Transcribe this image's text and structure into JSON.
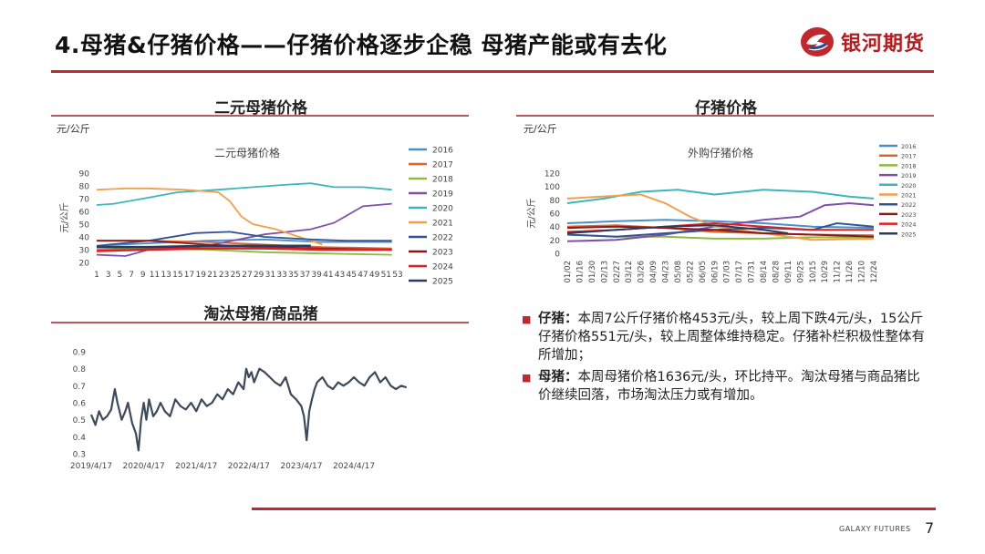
{
  "header": {
    "title": "4.母猪&仔猪价格——仔猪价格逐步企稳 母猪产能或有去化",
    "logo_text": "银河期货"
  },
  "colors": {
    "accent": "#c0282d",
    "s2016": "#4a90c8",
    "s2017": "#e0662a",
    "s2018": "#8dbb3f",
    "s2019": "#8050a8",
    "s2020": "#3eb5b8",
    "s2021": "#f0a050",
    "s2022": "#2f5597",
    "s2023": "#8a1a1a",
    "s2024": "#e02020",
    "s2025": "#2d3a5e"
  },
  "left_top": {
    "section_title": "二元母猪价格",
    "unit": "元/公斤",
    "chart_data": {
      "type": "line",
      "title": "二元母猪价格",
      "ylabel": "元/公斤",
      "ylim": [
        20,
        90
      ],
      "yticks": [
        "90",
        "80",
        "70",
        "60",
        "50",
        "40",
        "30",
        "20"
      ],
      "xticks": [
        "1",
        "3",
        "5",
        "7",
        "9",
        "11",
        "13",
        "15",
        "17",
        "19",
        "21",
        "23",
        "25",
        "27",
        "29",
        "31",
        "33",
        "35",
        "37",
        "39",
        "41",
        "43",
        "45",
        "47",
        "49",
        "51",
        "53"
      ],
      "x_range": [
        1,
        53
      ],
      "legend": [
        "2016",
        "2017",
        "2018",
        "2019",
        "2020",
        "2021",
        "2022",
        "2023",
        "2024",
        "2025"
      ],
      "series": [
        {
          "name": "2016",
          "x": [
            1,
            10,
            20,
            30,
            40,
            52
          ],
          "values": [
            33,
            35,
            37,
            38,
            36,
            36
          ]
        },
        {
          "name": "2017",
          "x": [
            1,
            10,
            20,
            30,
            40,
            52
          ],
          "values": [
            37,
            37,
            36,
            34,
            32,
            31
          ]
        },
        {
          "name": "2018",
          "x": [
            1,
            10,
            20,
            30,
            40,
            52
          ],
          "values": [
            30,
            31,
            30,
            28,
            27,
            26
          ]
        },
        {
          "name": "2019",
          "x": [
            1,
            6,
            10,
            20,
            30,
            38,
            42,
            47,
            52
          ],
          "values": [
            26,
            25,
            30,
            33,
            42,
            46,
            51,
            64,
            66
          ]
        },
        {
          "name": "2020",
          "x": [
            1,
            4,
            9,
            15,
            22,
            28,
            34,
            38,
            42,
            47,
            52
          ],
          "values": [
            65,
            66,
            70,
            75,
            77,
            79,
            81,
            82,
            79,
            79,
            77
          ]
        },
        {
          "name": "2021",
          "x": [
            1,
            6,
            10,
            16,
            22,
            24,
            26,
            28,
            32,
            36,
            40
          ],
          "values": [
            77,
            78,
            78,
            77,
            75,
            68,
            56,
            50,
            46,
            40,
            34
          ]
        },
        {
          "name": "2022",
          "x": [
            1,
            10,
            18,
            24,
            30,
            38,
            44,
            52
          ],
          "values": [
            33,
            37,
            43,
            44,
            40,
            38,
            37,
            37
          ]
        },
        {
          "name": "2023",
          "x": [
            1,
            10,
            20,
            30,
            40,
            52
          ],
          "values": [
            37,
            37,
            34,
            32,
            31,
            30
          ]
        },
        {
          "name": "2024",
          "x": [
            1,
            10,
            20,
            30,
            40,
            52
          ],
          "values": [
            29,
            30,
            31,
            31,
            30,
            30
          ]
        },
        {
          "name": "2025",
          "x": [
            1,
            10,
            20,
            30,
            38
          ],
          "values": [
            32,
            32,
            33,
            33,
            33
          ]
        }
      ]
    }
  },
  "right_top": {
    "section_title": "仔猪价格",
    "unit": "元/公斤",
    "chart_data": {
      "type": "line",
      "title": "外购仔猪价格",
      "ylabel": "元/公斤",
      "ylim": [
        0,
        120
      ],
      "yticks": [
        "120",
        "100",
        "80",
        "60",
        "40",
        "20",
        "0"
      ],
      "xticks": [
        "01/02",
        "01/16",
        "01/30",
        "02/13",
        "02/27",
        "03/12",
        "03/26",
        "04/09",
        "04/23",
        "05/08",
        "05/22",
        "06/05",
        "06/19",
        "07/03",
        "07/17",
        "07/31",
        "08/14",
        "08/28",
        "09/11",
        "09/25",
        "10/15",
        "10/29",
        "11/12",
        "11/26",
        "12/10",
        "12/24"
      ],
      "legend": [
        "2016",
        "2017",
        "2018",
        "2019",
        "2020",
        "2021",
        "2022",
        "2023",
        "2024",
        "2025"
      ],
      "series": [
        {
          "name": "2016",
          "x": [
            0,
            4,
            8,
            12,
            16,
            20,
            25
          ],
          "values": [
            45,
            48,
            50,
            48,
            45,
            40,
            38
          ]
        },
        {
          "name": "2017",
          "x": [
            0,
            4,
            8,
            12,
            16,
            20,
            25
          ],
          "values": [
            40,
            42,
            38,
            32,
            30,
            28,
            27
          ]
        },
        {
          "name": "2018",
          "x": [
            0,
            4,
            8,
            12,
            16,
            20,
            25
          ],
          "values": [
            28,
            25,
            25,
            22,
            22,
            24,
            24
          ]
        },
        {
          "name": "2019",
          "x": [
            0,
            4,
            8,
            12,
            16,
            19,
            21,
            23,
            25
          ],
          "values": [
            18,
            20,
            28,
            40,
            50,
            55,
            72,
            75,
            72
          ]
        },
        {
          "name": "2020",
          "x": [
            0,
            3,
            6,
            9,
            12,
            16,
            20,
            23,
            25
          ],
          "values": [
            75,
            82,
            92,
            95,
            88,
            95,
            92,
            85,
            82
          ]
        },
        {
          "name": "2021",
          "x": [
            0,
            4,
            6,
            8,
            10,
            12,
            16,
            20,
            25
          ],
          "values": [
            82,
            86,
            88,
            75,
            55,
            40,
            30,
            20,
            22
          ]
        },
        {
          "name": "2022",
          "x": [
            0,
            4,
            8,
            12,
            16,
            20,
            22,
            25
          ],
          "values": [
            28,
            25,
            30,
            35,
            38,
            35,
            45,
            40
          ]
        },
        {
          "name": "2023",
          "x": [
            0,
            4,
            8,
            12,
            16,
            20,
            25
          ],
          "values": [
            38,
            40,
            38,
            35,
            30,
            28,
            25
          ]
        },
        {
          "name": "2024",
          "x": [
            0,
            4,
            8,
            12,
            16,
            20,
            25
          ],
          "values": [
            32,
            35,
            40,
            45,
            40,
            35,
            35
          ]
        },
        {
          "name": "2025",
          "x": [
            0,
            4,
            8,
            12,
            16,
            18
          ],
          "values": [
            30,
            35,
            40,
            42,
            35,
            30
          ]
        }
      ]
    }
  },
  "left_bottom": {
    "section_title": "淘汰母猪/商品猪",
    "chart_data": {
      "type": "line",
      "ylim": [
        0.3,
        0.9
      ],
      "yticks": [
        "0.9",
        "0.8",
        "0.7",
        "0.6",
        "0.5",
        "0.4",
        "0.3"
      ],
      "xticks": [
        "2019/4/17",
        "2020/4/17",
        "2021/4/17",
        "2022/4/17",
        "2023/4/17",
        "2024/4/17"
      ],
      "x_range": [
        0,
        6.7
      ],
      "series": [
        {
          "name": "",
          "x": [
            0,
            0.08,
            0.15,
            0.22,
            0.3,
            0.38,
            0.45,
            0.5,
            0.58,
            0.65,
            0.7,
            0.78,
            0.85,
            0.9,
            0.95,
            1.0,
            1.05,
            1.1,
            1.18,
            1.25,
            1.32,
            1.4,
            1.5,
            1.6,
            1.7,
            1.8,
            1.9,
            2.0,
            2.1,
            2.2,
            2.3,
            2.4,
            2.5,
            2.6,
            2.7,
            2.8,
            2.9,
            2.95,
            3.0,
            3.05,
            3.1,
            3.2,
            3.3,
            3.4,
            3.5,
            3.6,
            3.7,
            3.8,
            3.9,
            4.0,
            4.05,
            4.1,
            4.15,
            4.2,
            4.25,
            4.3,
            4.4,
            4.5,
            4.6,
            4.7,
            4.8,
            4.9,
            5.0,
            5.1,
            5.2,
            5.3,
            5.4,
            5.5,
            5.6,
            5.7,
            5.8,
            5.9,
            6.0
          ],
          "values": [
            0.53,
            0.47,
            0.55,
            0.5,
            0.52,
            0.56,
            0.68,
            0.6,
            0.5,
            0.55,
            0.6,
            0.48,
            0.42,
            0.32,
            0.5,
            0.6,
            0.5,
            0.62,
            0.52,
            0.55,
            0.6,
            0.55,
            0.52,
            0.62,
            0.58,
            0.56,
            0.6,
            0.55,
            0.62,
            0.58,
            0.6,
            0.65,
            0.62,
            0.68,
            0.65,
            0.72,
            0.68,
            0.8,
            0.75,
            0.78,
            0.72,
            0.8,
            0.78,
            0.75,
            0.72,
            0.7,
            0.75,
            0.65,
            0.62,
            0.58,
            0.52,
            0.38,
            0.55,
            0.62,
            0.68,
            0.72,
            0.75,
            0.7,
            0.68,
            0.72,
            0.7,
            0.72,
            0.75,
            0.72,
            0.7,
            0.75,
            0.78,
            0.72,
            0.75,
            0.7,
            0.68,
            0.7,
            0.69
          ]
        }
      ]
    }
  },
  "bullets": [
    {
      "head": "仔猪：",
      "text": "本周7公斤仔猪价格453元/头，较上周下跌4元/头，15公斤仔猪价格551元/头，较上周整体维持稳定。仔猪补栏积极性整体有所增加；"
    },
    {
      "head": "母猪：",
      "text": "本周母猪价格1636元/头，环比持平。淘汰母猪与商品猪比价继续回落，市场淘汰压力或有增加。"
    }
  ],
  "footer": {
    "brand": "GALAXY FUTURES",
    "page": "7"
  }
}
